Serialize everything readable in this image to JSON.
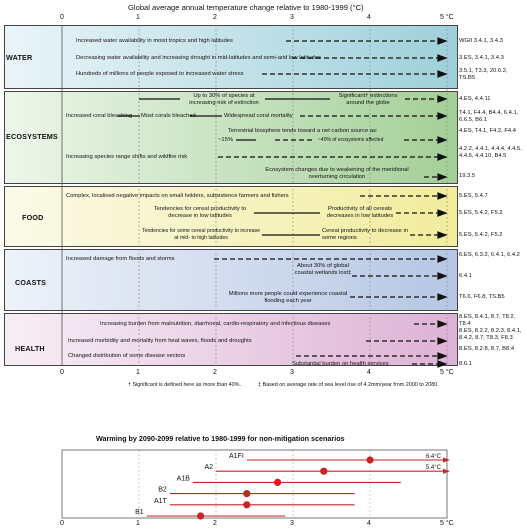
{
  "top": {
    "title": "Global average annual temperature change relative to 1980-1999 (°C)",
    "ticks": [
      "0",
      "1",
      "2",
      "3",
      "4",
      "5 °C"
    ]
  },
  "sectors": [
    {
      "name": "WATER",
      "impacts": [
        {
          "text": "Increased water availability in moist tropics and high latitudes",
          "ref": "WGII 3.4.1, 3.4.3"
        },
        {
          "text": "Decreasing water availability and increasing drought in mid-latitudes and semi-arid low latitudes",
          "ref": "3.ES, 3.4.1, 3.4.3"
        },
        {
          "text": "Hundreds of millions of people exposed to increased water stress",
          "ref": "3.5.1, T3.3, 20.6.2, TS.B5"
        }
      ]
    },
    {
      "name": "ECOSYSTEMS",
      "impacts": [
        {
          "text": "Up to 30% of species at increasing risk of extinction",
          "ref": "4.ES, 4.4.11"
        },
        {
          "text": "Significant† extinctions around the globe",
          "ref": ""
        },
        {
          "text": "Increased coral bleaching",
          "ref": "T4.1, F4.4, B4.4, 6.4.1, 6.6.5, B6.1"
        },
        {
          "text": "Most corals bleached",
          "ref": ""
        },
        {
          "text": "Widespread coral mortality",
          "ref": ""
        },
        {
          "text": "Terrestrial biosphere tends toward a net carbon source as:",
          "ref": "4.ES, T4.1, F4.2, F4.4"
        },
        {
          "text": "~15%",
          "ref": ""
        },
        {
          "text": "~40% of ecosystems affected",
          "ref": ""
        },
        {
          "text": "Increasing species range shifts and wildfire risk",
          "ref": "4.2.2, 4.4.1, 4.4.4, 4.4.5, 4.4.6, 4.4.10, B4.5"
        },
        {
          "text": "Ecosystem changes due to weakening of the meridional overturning circulation",
          "ref": "19.3.5"
        }
      ]
    },
    {
      "name": "FOOD",
      "impacts": [
        {
          "text": "Complex, localised negative impacts on small holders, subsistence farmers and fishers",
          "ref": "5.ES, 5.4.7"
        },
        {
          "text": "Tendencies for cereal productivity to decrease in low latitudes",
          "ref": "5.ES, 5.4.2, F5.2"
        },
        {
          "text": "Productivity of all cereals decreases in low latitudes",
          "ref": ""
        },
        {
          "text": "Tendencies for some cereal productivity to increase at mid- to high latitudes",
          "ref": "5.ES, 5.4.2, F5.2"
        },
        {
          "text": "Cereal productivity to decrease in some regions",
          "ref": ""
        }
      ]
    },
    {
      "name": "COASTS",
      "impacts": [
        {
          "text": "Increased damage from floods and storms",
          "ref": "6.ES, 6.3.2, 6.4.1, 6.4.2"
        },
        {
          "text": "About 30% of global coastal wetlands lost‡",
          "ref": "6.4.1"
        },
        {
          "text": "Millions more people could experience coastal flooding each year",
          "ref": "T6.6, F6.8, TS.B5"
        }
      ]
    },
    {
      "name": "HEALTH",
      "impacts": [
        {
          "text": "Increasing burden from malnutrition, diarrhoeal, cardio-respiratory and infectious diseases",
          "ref": "8.ES, 8.4.1, 8.7, T8.2, T8.4"
        },
        {
          "text": "Increased morbidity and mortality from heat waves, floods and droughts",
          "ref": "8.ES, 8.2.2, 8.2.3, 8.4.1, 8.4.2, 8.7, T8.3, F8.3"
        },
        {
          "text": "Changed distribution of some disease vectors",
          "ref": "8.ES, 8.2.8, 8.7, B8.4"
        },
        {
          "text": "Substantial burden on health services",
          "ref": "8.6.1"
        }
      ]
    }
  ],
  "footnotes": {
    "dagger": "† Significant is defined here as more than 40%.",
    "ddagger": "‡ Based on average rate of sea level rise of 4.2mm/year from 2000 to 2080."
  },
  "bottom": {
    "title": "Warming by 2090-2099 relative to 1980-1999 for non-mitigation scenarios",
    "ticks": [
      "0",
      "1",
      "2",
      "3",
      "4",
      "5 °C"
    ],
    "axis_min": 0,
    "axis_max": 5,
    "line_color": "#cc2222",
    "marker_color": "#cc2222",
    "scenarios": [
      {
        "name": "A1FI",
        "best": 4.0,
        "low": 2.4,
        "high": 6.4,
        "label": "6.4°C"
      },
      {
        "name": "A2",
        "best": 3.4,
        "low": 2.0,
        "high": 5.4,
        "label": "5.4°C"
      },
      {
        "name": "A1B",
        "best": 2.8,
        "low": 1.7,
        "high": 4.4,
        "label": ""
      },
      {
        "name": "B2",
        "best": 2.4,
        "low": 1.4,
        "high": 3.8,
        "label": ""
      },
      {
        "name": "A1T",
        "best": 2.4,
        "low": 1.4,
        "high": 3.8,
        "label": ""
      },
      {
        "name": "B1",
        "best": 1.8,
        "low": 1.1,
        "high": 2.9,
        "label": ""
      }
    ]
  }
}
